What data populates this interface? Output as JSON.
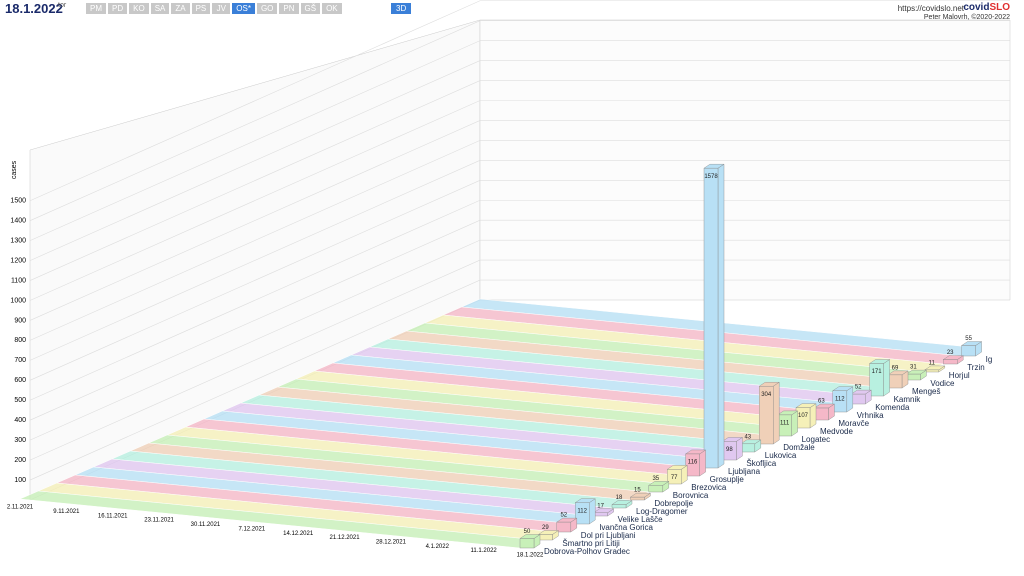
{
  "header": {
    "date": "18.1.2022",
    "day": "tor",
    "regions": [
      "PM",
      "PD",
      "KO",
      "SA",
      "ZA",
      "PS",
      "JV",
      "OS*",
      "GO",
      "PN",
      "GŠ",
      "OK"
    ],
    "view_button": "3D",
    "site": "https://covidslo.net",
    "brand": "covid",
    "brand_accent": "SLO",
    "credit": "Peter Malovrh, ©2020-2022"
  },
  "chart_data": {
    "type": "bar3d",
    "y_label": "cases",
    "dates": [
      "2.11.2021",
      "9.11.2021",
      "16.11.2021",
      "23.11.2021",
      "30.11.2021",
      "7.12.2021",
      "14.12.2021",
      "21.12.2021",
      "28.12.2021",
      "4.1.2022",
      "11.1.2022",
      "18.1.2022"
    ],
    "categories": [
      "Dobrova-Polhov Gradec",
      "Šmartno pri Litiji",
      "Dol pri Ljubljani",
      "Ivančna Gorica",
      "Velike Lašče",
      "Log-Dragomer",
      "Dobrepolje",
      "Borovnica",
      "Brezovica",
      "Grosuplje",
      "Ljubljana",
      "Škofljica",
      "Lukovica",
      "Domžale",
      "Logatec",
      "Medvode",
      "Moravče",
      "Vrhnika",
      "Komenda",
      "Kamnik",
      "Mengeš",
      "Vodice",
      "Horjul",
      "Trzin",
      "Ig"
    ],
    "values": [
      50,
      29,
      52,
      112,
      17,
      18,
      15,
      35,
      77,
      116,
      1578,
      98,
      43,
      304,
      111,
      107,
      63,
      112,
      52,
      171,
      69,
      31,
      11,
      23,
      55
    ],
    "colors": [
      "#c8f0b8",
      "#f5f0b8",
      "#f5b8c8",
      "#b8e0f5",
      "#e0c8f0",
      "#b8f0e0",
      "#f0d0b8"
    ],
    "ylim": [
      0,
      1600
    ],
    "yticks": [
      100,
      200,
      300,
      400,
      500,
      600,
      700,
      800,
      900,
      1000,
      1100,
      1200,
      1300,
      1400,
      1500
    ]
  }
}
